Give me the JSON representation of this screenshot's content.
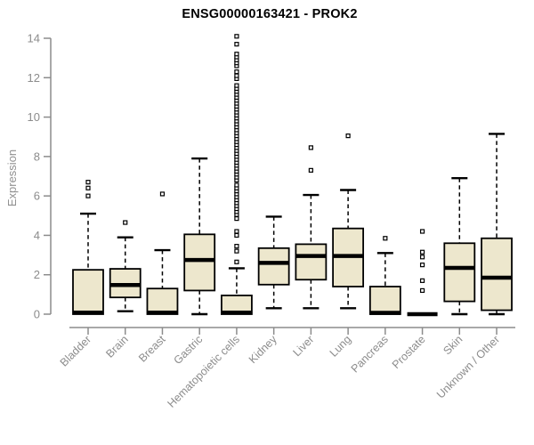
{
  "chart_data": {
    "type": "box",
    "title": "ENSG00000163421 - PROK2",
    "ylabel": "Expression",
    "xlabel": "",
    "ylim": [
      0,
      14
    ],
    "yticks": [
      0,
      2,
      4,
      6,
      8,
      10,
      12,
      14
    ],
    "grid": false,
    "legend": "none",
    "colors": {
      "box_fill": "#ede7cd",
      "box_border": "#000000",
      "median": "#000000",
      "whisker": "#000000",
      "outlier_stroke": "#000000",
      "axis": "#8c8c8c",
      "tick_label": "#8c8c8c",
      "title": "#000000",
      "background": "#ffffff"
    },
    "boxes": [
      {
        "label": "Bladder",
        "whisker_low": 0,
        "q1": 0,
        "median": 0.08,
        "q3": 2.25,
        "whisker_high": 5.1,
        "outliers": [
          6.0,
          6.4,
          6.7
        ]
      },
      {
        "label": "Brain",
        "whisker_low": 0.15,
        "q1": 0.85,
        "median": 1.48,
        "q3": 2.3,
        "whisker_high": 3.9,
        "outliers": [
          4.65
        ]
      },
      {
        "label": "Breast",
        "whisker_low": 0,
        "q1": 0,
        "median": 0.08,
        "q3": 1.3,
        "whisker_high": 3.25,
        "outliers": [
          6.1
        ]
      },
      {
        "label": "Gastric",
        "whisker_low": 0,
        "q1": 1.2,
        "median": 2.75,
        "q3": 4.05,
        "whisker_high": 7.9,
        "outliers": []
      },
      {
        "label": "Hematopoietic cells",
        "whisker_low": 0,
        "q1": 0,
        "median": 0.08,
        "q3": 0.95,
        "whisker_high": 2.33,
        "outliers": [
          2.65,
          3.2,
          3.45,
          4.0,
          4.2,
          4.85,
          5.05,
          5.2,
          5.35,
          5.5,
          5.65,
          5.8,
          5.95,
          6.1,
          6.25,
          6.4,
          6.55,
          6.8,
          6.95,
          7.1,
          7.25,
          7.4,
          7.55,
          7.7,
          7.85,
          8.0,
          8.15,
          8.3,
          8.45,
          8.6,
          8.75,
          8.9,
          9.05,
          9.2,
          9.35,
          9.5,
          9.65,
          9.8,
          9.95,
          10.1,
          10.25,
          10.4,
          10.55,
          10.7,
          10.85,
          11.0,
          11.15,
          11.3,
          11.45,
          11.6,
          11.95,
          12.1,
          12.3,
          12.6,
          12.75,
          12.9,
          13.05,
          13.2,
          13.7,
          14.1
        ]
      },
      {
        "label": "Kidney",
        "whisker_low": 0.3,
        "q1": 1.5,
        "median": 2.6,
        "q3": 3.35,
        "whisker_high": 4.95,
        "outliers": []
      },
      {
        "label": "Liver",
        "whisker_low": 0.3,
        "q1": 1.75,
        "median": 2.95,
        "q3": 3.55,
        "whisker_high": 6.05,
        "outliers": [
          7.3,
          8.45
        ]
      },
      {
        "label": "Lung",
        "whisker_low": 0.3,
        "q1": 1.4,
        "median": 2.95,
        "q3": 4.35,
        "whisker_high": 6.3,
        "outliers": [
          9.05
        ]
      },
      {
        "label": "Pancreas",
        "whisker_low": 0,
        "q1": 0,
        "median": 0.07,
        "q3": 1.4,
        "whisker_high": 3.1,
        "outliers": [
          3.85
        ]
      },
      {
        "label": "Prostate",
        "whisker_low": 0,
        "q1": 0,
        "median": 0,
        "q3": 0,
        "whisker_high": 0,
        "outliers": [
          1.2,
          1.7,
          2.5,
          2.9,
          3.15,
          4.2
        ]
      },
      {
        "label": "Skin",
        "whisker_low": 0,
        "q1": 0.65,
        "median": 2.35,
        "q3": 3.6,
        "whisker_high": 6.9,
        "outliers": []
      },
      {
        "label": "Unknown / Other",
        "whisker_low": 0,
        "q1": 0.2,
        "median": 1.85,
        "q3": 3.85,
        "whisker_high": 9.15,
        "outliers": []
      }
    ]
  }
}
